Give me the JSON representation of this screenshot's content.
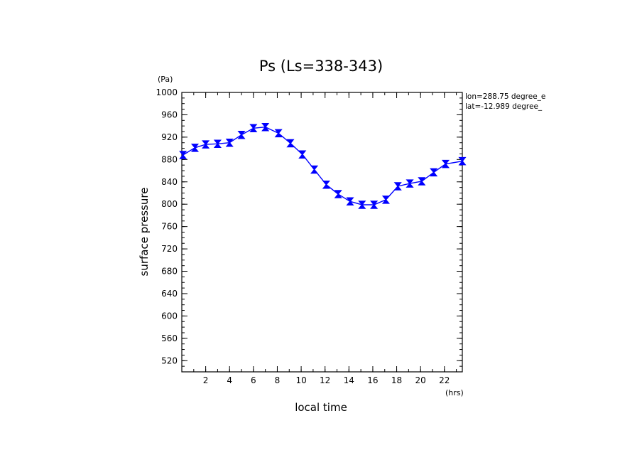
{
  "chart_data": {
    "type": "line",
    "title": "Ps (Ls=338-343)",
    "xlabel": "local time",
    "ylabel": "surface pressure",
    "x_unit": "(hrs)",
    "y_unit": "(Pa)",
    "xlim": [
      0,
      23.5
    ],
    "ylim": [
      500,
      1000
    ],
    "x_ticks": [
      2,
      4,
      6,
      8,
      10,
      12,
      14,
      16,
      18,
      20,
      22
    ],
    "y_ticks": [
      520,
      560,
      600,
      640,
      680,
      720,
      760,
      800,
      840,
      880,
      920,
      960,
      1000
    ],
    "annotations": [
      "lon=288.75 degree_e",
      "lat=-12.989 degree_"
    ],
    "color": "#0000ff",
    "x": [
      0.1,
      1.1,
      2.0,
      3.0,
      4.0,
      5.0,
      6.0,
      7.0,
      8.1,
      9.1,
      10.1,
      11.1,
      12.1,
      13.1,
      14.1,
      15.1,
      16.1,
      17.1,
      18.1,
      19.1,
      20.1,
      21.1,
      22.1,
      23.5
    ],
    "y": [
      888,
      901,
      907,
      908,
      910,
      924,
      936,
      938,
      927,
      909,
      889,
      862,
      835,
      818,
      805,
      799,
      799,
      808,
      832,
      837,
      841,
      857,
      872,
      877
    ]
  }
}
